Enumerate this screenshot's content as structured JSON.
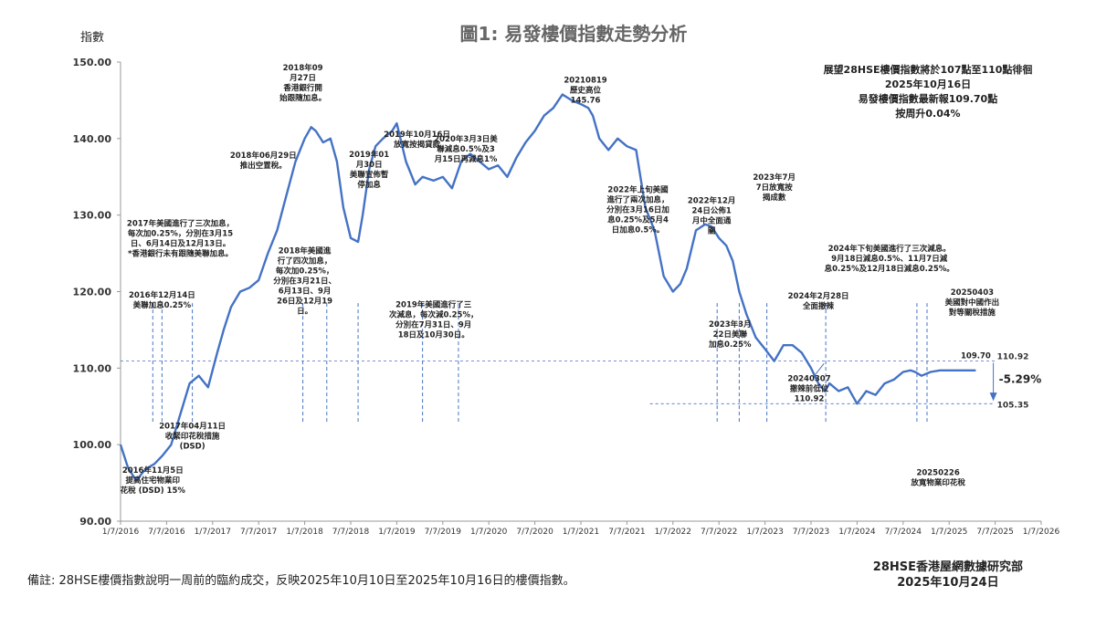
{
  "chart_data": {
    "type": "line",
    "title": "圖1: 易發樓價指數走勢分析",
    "ylabel": "指數",
    "ylim": [
      90,
      150
    ],
    "yticks": [
      "90.00",
      "100.00",
      "110.00",
      "120.00",
      "130.00",
      "140.00",
      "150.00"
    ],
    "xticks": [
      "1/7/2016",
      "7/7/2016",
      "1/7/2017",
      "7/7/2017",
      "1/7/2018",
      "7/7/2018",
      "1/7/2019",
      "7/7/2019",
      "1/7/2020",
      "7/7/2020",
      "1/7/2021",
      "7/7/2021",
      "1/7/2022",
      "7/7/2022",
      "1/7/2023",
      "7/7/2023",
      "1/7/2024",
      "7/7/2024",
      "1/7/2025",
      "7/7/2025",
      "1/7/2026"
    ],
    "grid": false,
    "line_color": "#4472c4",
    "series": [
      {
        "x": [
          2016.5,
          2016.58,
          2016.67,
          2016.75,
          2016.8,
          2016.87,
          2016.95,
          2017.05,
          2017.15,
          2017.25,
          2017.35,
          2017.45,
          2017.55,
          2017.62,
          2017.7,
          2017.8,
          2017.9,
          2018.0,
          2018.1,
          2018.2,
          2018.3,
          2018.4,
          2018.5,
          2018.57,
          2018.62,
          2018.7,
          2018.78,
          2018.85,
          2018.92,
          2019.0,
          2019.08,
          2019.13,
          2019.2,
          2019.27,
          2019.35,
          2019.45,
          2019.5,
          2019.6,
          2019.7,
          2019.78,
          2019.9,
          2020.0,
          2020.1,
          2020.2,
          2020.3,
          2020.4,
          2020.5,
          2020.6,
          2020.7,
          2020.8,
          2020.9,
          2021.0,
          2021.1,
          2021.2,
          2021.3,
          2021.4,
          2021.5,
          2021.58,
          2021.63,
          2021.7,
          2021.8,
          2021.9,
          2022.0,
          2022.1,
          2022.2,
          2022.3,
          2022.4,
          2022.5,
          2022.58,
          2022.65,
          2022.75,
          2022.85,
          2022.92,
          2023.0,
          2023.08,
          2023.15,
          2023.22,
          2023.3,
          2023.4,
          2023.5,
          2023.6,
          2023.7,
          2023.8,
          2023.9,
          2024.0,
          2024.08,
          2024.15,
          2024.2,
          2024.3,
          2024.4,
          2024.5,
          2024.6,
          2024.7,
          2024.8,
          2024.9,
          2025.0,
          2025.08,
          2025.13,
          2025.2,
          2025.3,
          2025.4,
          2025.5,
          2025.6,
          2025.7,
          2025.79
        ],
        "y": [
          100.0,
          97.0,
          95.3,
          96.5,
          97.0,
          97.5,
          98.5,
          100.0,
          104.0,
          108.0,
          109.0,
          107.5,
          112.0,
          115.0,
          118.0,
          120.0,
          120.5,
          121.5,
          125.0,
          128.0,
          132.5,
          137.0,
          140.0,
          141.5,
          141.0,
          139.5,
          140.0,
          137.0,
          131.0,
          127.0,
          126.5,
          130.0,
          136.0,
          139.0,
          140.0,
          141.0,
          142.0,
          137.0,
          134.0,
          135.0,
          134.5,
          135.0,
          133.5,
          137.0,
          138.0,
          137.0,
          136.0,
          136.5,
          135.0,
          137.5,
          139.5,
          141.0,
          143.0,
          144.0,
          145.76,
          145.0,
          144.5,
          144.0,
          143.0,
          140.0,
          138.5,
          140.0,
          139.0,
          138.5,
          131.0,
          128.0,
          122.0,
          120.0,
          121.0,
          123.0,
          128.0,
          128.8,
          128.5,
          127.0,
          126.0,
          124.0,
          120.0,
          117.0,
          114.0,
          112.5,
          110.92,
          113.0,
          113.0,
          112.0,
          110.0,
          108.0,
          107.0,
          108.0,
          107.0,
          107.5,
          105.35,
          107.0,
          106.5,
          108.0,
          108.5,
          109.5,
          109.7,
          109.5,
          109.0,
          109.5,
          109.7,
          109.7,
          109.7,
          109.7,
          109.7
        ]
      }
    ],
    "annotations": [
      {
        "id": "a-2016-11",
        "lines": [
          "2016年11月5日",
          "提高住宅物業印",
          "花稅 (DSD) 15%"
        ],
        "x": 2016.85,
        "y": 96.3,
        "align": "middle"
      },
      {
        "id": "a-2016-12",
        "lines": [
          "2016年12月14日",
          "美聯加息0.25%"
        ],
        "x": 2016.95,
        "y": 119.2,
        "align": "middle"
      },
      {
        "id": "a-2017-04",
        "lines": [
          "2017年04月11日",
          "收緊印花稅措施",
          "(DSD)"
        ],
        "x": 2017.28,
        "y": 102.1,
        "align": "middle"
      },
      {
        "id": "a-2017-hikes",
        "lines": [
          "2017年美國進行了三次加息，",
          "每次加0.25%，分別在3月15",
          "日、6月14日及12月13日。",
          "*香港銀行未有跟隨美聯加息。"
        ],
        "x": 2017.15,
        "y": 128.6,
        "align": "middle"
      },
      {
        "id": "a-2018-06",
        "lines": [
          "2018年06月29日",
          "推出空置稅。"
        ],
        "x": 2018.05,
        "y": 137.5,
        "align": "middle"
      },
      {
        "id": "a-2018-09",
        "lines": [
          "2018年09",
          "月27日",
          "香港銀行開",
          "始跟隨加息。"
        ],
        "x": 2018.48,
        "y": 148.9,
        "align": "middle"
      },
      {
        "id": "a-2018-hikes",
        "lines": [
          "2018年美國進",
          "行了四次加息，",
          "每次加0.25%，",
          "分別在3月21日、",
          "6月13日、9月",
          "26日及12月19",
          "日。"
        ],
        "x": 2018.5,
        "y": 125.0,
        "align": "middle"
      },
      {
        "id": "a-2019-01",
        "lines": [
          "2019年01",
          "月30日",
          "美聯宣佈暫",
          "停加息"
        ],
        "x": 2019.2,
        "y": 137.6,
        "align": "middle"
      },
      {
        "id": "a-2019-10",
        "lines": [
          "2019年10月16日",
          "放寬按揭貸款"
        ],
        "x": 2019.72,
        "y": 140.2,
        "align": "middle"
      },
      {
        "id": "a-2019-cuts",
        "lines": [
          "2019年美國進行了三",
          "次減息，每次減0.25%，",
          "分別在7月31日、9月",
          "18日及10月30日。"
        ],
        "x": 2019.9,
        "y": 118.0,
        "align": "middle"
      },
      {
        "id": "a-2020-03",
        "lines": [
          "2020年3月3日美",
          "聯減息0.5%及3",
          "月15日再減息1%"
        ],
        "x": 2020.25,
        "y": 139.6,
        "align": "middle"
      },
      {
        "id": "a-2021-peak",
        "lines": [
          "20210819",
          "歷史高位",
          "145.76"
        ],
        "x": 2021.55,
        "y": 147.3,
        "align": "middle"
      },
      {
        "id": "a-2022-hikes",
        "lines": [
          "2022年上旬美國",
          "進行了兩次加息，",
          "分別在3月16日加",
          "息0.25%及5月4",
          "日加息0.5%。"
        ],
        "x": 2022.12,
        "y": 133.0,
        "align": "middle"
      },
      {
        "id": "a-2022-12",
        "lines": [
          "2022年12月",
          "24日公佈1",
          "月中全面通",
          "關"
        ],
        "x": 2022.92,
        "y": 131.6,
        "align": "middle"
      },
      {
        "id": "a-2023-03",
        "lines": [
          "2023年3月",
          "22日美聯",
          "加息0.25%"
        ],
        "x": 2023.12,
        "y": 115.4,
        "align": "middle"
      },
      {
        "id": "a-2023-07",
        "lines": [
          "2023年7月",
          "7日放寬按",
          "揭成數"
        ],
        "x": 2023.6,
        "y": 134.6,
        "align": "middle"
      },
      {
        "id": "a-2024-02",
        "lines": [
          "2024年2月28日",
          "全面撤辣"
        ],
        "x": 2024.08,
        "y": 119.1,
        "align": "middle"
      },
      {
        "id": "a-2024-cuts",
        "lines": [
          "2024年下旬美國進行了三次減息。",
          "9月18日減息0.5%、11月7日減",
          "息0.25%及12月18日減息0.25%。"
        ],
        "x": 2024.85,
        "y": 125.3,
        "align": "middle"
      },
      {
        "id": "a-2024-low",
        "lines": [
          "20240307",
          "撤辣前低位",
          "110.92"
        ],
        "x": 2023.98,
        "y": 108.3,
        "align": "middle"
      },
      {
        "id": "a-2025-04",
        "lines": [
          "20250403",
          "美國對中國作出",
          "對等關稅措施"
        ],
        "x": 2025.75,
        "y": 119.6,
        "align": "middle"
      },
      {
        "id": "a-2025-02",
        "lines": [
          "20250226",
          "放寬物業印花稅"
        ],
        "x": 2025.38,
        "y": 96.0,
        "align": "middle"
      },
      {
        "id": "a-last",
        "lines": [
          "109.70"
        ],
        "x": 2025.79,
        "y": 111.3,
        "align": "middle"
      }
    ],
    "event_lines": [
      2016.85,
      2016.95,
      2017.28,
      2018.48,
      2018.74,
      2019.08,
      2019.78,
      2020.17,
      2022.98,
      2023.22,
      2023.52,
      2024.16,
      2025.15,
      2025.26
    ],
    "reference_lines": [
      {
        "label": "110.92",
        "y": 110.92
      },
      {
        "label": "105.35",
        "y": 105.35
      }
    ],
    "change_label": "-5.29%",
    "ref_color": "#4472c4"
  },
  "summary": {
    "line1": "展望28HSE樓價指數將於107點至110點徘徊",
    "line2": "2025年10月16日",
    "line3": "易發樓價指數最新報109.70點",
    "line4": "按周升0.04%"
  },
  "footer": {
    "note": "備註: 28HSE樓價指數說明一周前的臨約成交，反映2025年10月10日至2025年10月16日的樓價指數。",
    "credit_line1": "28HSE香港屋網數據研究部",
    "credit_line2": "2025年10月24日"
  }
}
